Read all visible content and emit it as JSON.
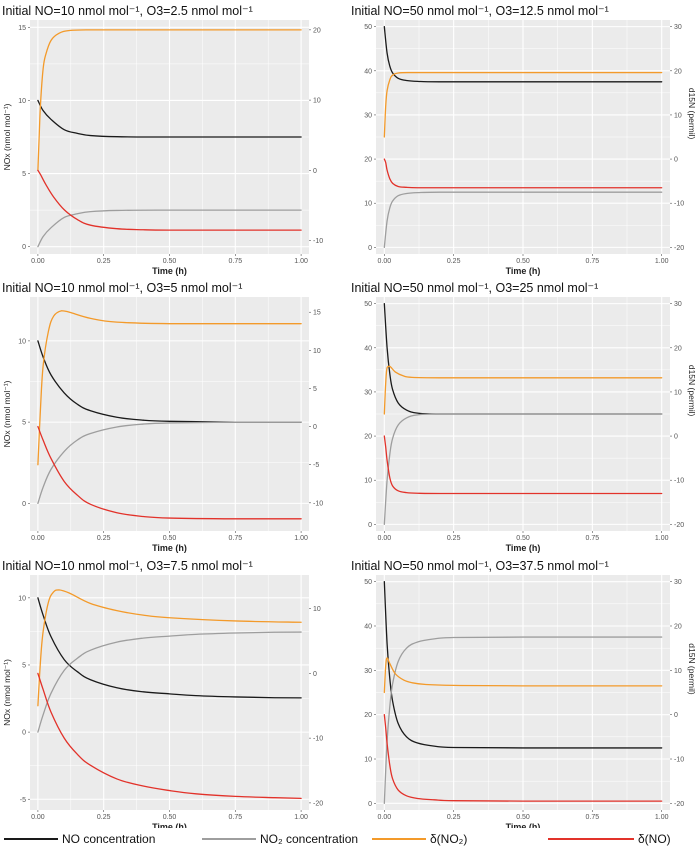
{
  "legend": {
    "no_conc": "NO concentration",
    "no2_conc": "NO₂ concentration",
    "d_no2": "δ(NO₂)",
    "d_no": "δ(NO)"
  },
  "colors": {
    "no_conc": "#1a1a1a",
    "no2_conc": "#9e9e9e",
    "d_no2": "#f39a2a",
    "d_no": "#e2322a",
    "panel_bg": "#ebebeb",
    "grid": "#ffffff"
  },
  "chart_data": [
    {
      "type": "line",
      "title": "Initial NO=10 nmol mol⁻¹, O3=2.5 nmol mol⁻¹",
      "xlabel": "Time (h)",
      "ylabel": "NOx (nmol mol⁻¹)",
      "y2label": "",
      "xlim": [
        -0.03,
        1.03
      ],
      "ylim": [
        -0.5,
        15.5
      ],
      "y2lim": [
        -11.9,
        21.4
      ],
      "xticks": [
        "0.00",
        "0.25",
        "0.50",
        "0.75",
        "1.00"
      ],
      "yticks": [
        "0",
        "5",
        "10",
        "15"
      ],
      "y2ticks": [
        "-10",
        "0",
        "10",
        "20"
      ],
      "series": [
        {
          "key": "no_conc",
          "axis": "left",
          "x": [
            0,
            0.02,
            0.05,
            0.1,
            0.15,
            0.2,
            0.3,
            0.5,
            0.75,
            1.0
          ],
          "y": [
            10,
            9.3,
            8.7,
            8.0,
            7.75,
            7.6,
            7.52,
            7.5,
            7.5,
            7.5
          ]
        },
        {
          "key": "no2_conc",
          "axis": "left",
          "x": [
            0,
            0.02,
            0.05,
            0.1,
            0.15,
            0.2,
            0.3,
            0.5,
            0.75,
            1.0
          ],
          "y": [
            0,
            0.7,
            1.3,
            2.0,
            2.25,
            2.4,
            2.48,
            2.5,
            2.5,
            2.5
          ]
        },
        {
          "key": "d_no2",
          "axis": "right",
          "x": [
            0,
            0.005,
            0.01,
            0.02,
            0.03,
            0.05,
            0.08,
            0.12,
            0.2,
            0.3,
            0.5,
            0.75,
            1.0
          ],
          "y": [
            0,
            5,
            9.5,
            14.5,
            16.5,
            18.5,
            19.5,
            19.9,
            20,
            20,
            20,
            20,
            20
          ]
        },
        {
          "key": "d_no",
          "axis": "right",
          "x": [
            0,
            0.01,
            0.03,
            0.06,
            0.1,
            0.15,
            0.2,
            0.3,
            0.4,
            0.5,
            0.75,
            1.0
          ],
          "y": [
            0,
            -0.6,
            -2.0,
            -3.8,
            -5.6,
            -7.0,
            -7.8,
            -8.3,
            -8.45,
            -8.5,
            -8.5,
            -8.5
          ]
        }
      ]
    },
    {
      "type": "line",
      "title": "Initial NO=50 nmol mol⁻¹, O3=12.5 nmol mol⁻¹",
      "xlabel": "Time (h)",
      "ylabel": "",
      "y2label": "d15N (permil)",
      "xlim": [
        -0.03,
        1.03
      ],
      "ylim": [
        -1.5,
        51.5
      ],
      "y2lim": [
        -21.5,
        31.5
      ],
      "xticks": [
        "0.00",
        "0.25",
        "0.50",
        "0.75",
        "1.00"
      ],
      "yticks": [
        "0",
        "10",
        "20",
        "30",
        "40",
        "50"
      ],
      "y2ticks": [
        "-20",
        "-10",
        "0",
        "10",
        "20",
        "30"
      ],
      "series": [
        {
          "key": "no_conc",
          "axis": "left",
          "x": [
            0,
            0.01,
            0.02,
            0.03,
            0.05,
            0.08,
            0.12,
            0.2,
            0.5,
            1.0
          ],
          "y": [
            50,
            44,
            41,
            39.5,
            38.3,
            37.8,
            37.6,
            37.5,
            37.5,
            37.5
          ]
        },
        {
          "key": "no2_conc",
          "axis": "left",
          "x": [
            0,
            0.01,
            0.02,
            0.03,
            0.05,
            0.08,
            0.12,
            0.2,
            0.5,
            1.0
          ],
          "y": [
            0,
            6,
            9,
            10.5,
            11.7,
            12.2,
            12.4,
            12.5,
            12.5,
            12.5
          ]
        },
        {
          "key": "d_no2",
          "axis": "right",
          "x": [
            0,
            0.005,
            0.01,
            0.02,
            0.03,
            0.05,
            0.1,
            0.2,
            0.5,
            1.0
          ],
          "y": [
            5,
            12,
            15.5,
            18,
            19,
            19.5,
            19.6,
            19.6,
            19.6,
            19.6
          ]
        },
        {
          "key": "d_no",
          "axis": "right",
          "x": [
            0,
            0.005,
            0.01,
            0.02,
            0.03,
            0.05,
            0.08,
            0.12,
            0.2,
            0.5,
            1.0
          ],
          "y": [
            0,
            -0.8,
            -2.5,
            -4.5,
            -5.5,
            -6.2,
            -6.4,
            -6.5,
            -6.5,
            -6.5,
            -6.5
          ]
        }
      ]
    },
    {
      "type": "line",
      "title": "Initial NO=10 nmol mol⁻¹, O3=5 nmol mol⁻¹",
      "xlabel": "Time (h)",
      "ylabel": "NOx (nmol mol⁻¹)",
      "y2label": "",
      "xlim": [
        -0.03,
        1.03
      ],
      "ylim": [
        -1.7,
        12.7
      ],
      "y2lim": [
        -13.7,
        17.0
      ],
      "xticks": [
        "0.00",
        "0.25",
        "0.50",
        "0.75",
        "1.00"
      ],
      "yticks": [
        "0",
        "5",
        "10"
      ],
      "y2ticks": [
        "-10",
        "-5",
        "0",
        "5",
        "10",
        "15"
      ],
      "series": [
        {
          "key": "no_conc",
          "axis": "left",
          "x": [
            0,
            0.02,
            0.05,
            0.1,
            0.15,
            0.2,
            0.3,
            0.4,
            0.5,
            0.75,
            1.0
          ],
          "y": [
            10,
            9.0,
            7.9,
            6.8,
            6.1,
            5.7,
            5.3,
            5.12,
            5.05,
            5.0,
            5.0
          ]
        },
        {
          "key": "no2_conc",
          "axis": "left",
          "x": [
            0,
            0.02,
            0.05,
            0.1,
            0.15,
            0.2,
            0.3,
            0.4,
            0.5,
            0.75,
            1.0
          ],
          "y": [
            0,
            1.0,
            2.1,
            3.2,
            3.9,
            4.3,
            4.7,
            4.88,
            4.95,
            5.0,
            5.0
          ]
        },
        {
          "key": "d_no2",
          "axis": "right",
          "x": [
            0,
            0.01,
            0.02,
            0.04,
            0.06,
            0.09,
            0.12,
            0.2,
            0.3,
            0.5,
            0.75,
            1.0
          ],
          "y": [
            -5,
            2.5,
            8,
            12.5,
            14.5,
            15.2,
            15.0,
            14.2,
            13.7,
            13.5,
            13.5,
            13.5
          ]
        },
        {
          "key": "d_no",
          "axis": "right",
          "x": [
            0,
            0.02,
            0.05,
            0.1,
            0.15,
            0.2,
            0.3,
            0.4,
            0.5,
            0.75,
            1.0
          ],
          "y": [
            0,
            -1.8,
            -4.2,
            -7.2,
            -9.0,
            -10.2,
            -11.3,
            -11.8,
            -12.0,
            -12.1,
            -12.1
          ]
        }
      ]
    },
    {
      "type": "line",
      "title": "Initial NO=50 nmol mol⁻¹, O3=25 nmol mol⁻¹",
      "xlabel": "Time (h)",
      "ylabel": "",
      "y2label": "d15N (permil)",
      "xlim": [
        -0.03,
        1.03
      ],
      "ylim": [
        -1.5,
        51.5
      ],
      "y2lim": [
        -21.5,
        31.5
      ],
      "xticks": [
        "0.00",
        "0.25",
        "0.50",
        "0.75",
        "1.00"
      ],
      "yticks": [
        "0",
        "10",
        "20",
        "30",
        "40",
        "50"
      ],
      "y2ticks": [
        "-20",
        "-10",
        "0",
        "10",
        "20",
        "30"
      ],
      "series": [
        {
          "key": "no_conc",
          "axis": "left",
          "x": [
            0,
            0.01,
            0.02,
            0.03,
            0.05,
            0.08,
            0.12,
            0.2,
            0.5,
            1.0
          ],
          "y": [
            50,
            40,
            34,
            30.5,
            27.5,
            25.9,
            25.2,
            25.0,
            25.0,
            25.0
          ]
        },
        {
          "key": "no2_conc",
          "axis": "left",
          "x": [
            0,
            0.01,
            0.02,
            0.03,
            0.05,
            0.08,
            0.12,
            0.2,
            0.5,
            1.0
          ],
          "y": [
            0,
            10,
            16,
            19.5,
            22.5,
            24.1,
            24.8,
            25.0,
            25.0,
            25.0
          ]
        },
        {
          "key": "d_no2",
          "axis": "right",
          "x": [
            0,
            0.005,
            0.01,
            0.02,
            0.04,
            0.07,
            0.1,
            0.2,
            0.5,
            1.0
          ],
          "y": [
            5,
            12,
            15.5,
            15.8,
            14.5,
            13.6,
            13.3,
            13.2,
            13.2,
            13.2
          ]
        },
        {
          "key": "d_no",
          "axis": "right",
          "x": [
            0,
            0.005,
            0.01,
            0.02,
            0.03,
            0.05,
            0.08,
            0.12,
            0.2,
            0.5,
            1.0
          ],
          "y": [
            0,
            -2.5,
            -5.5,
            -9.5,
            -11.3,
            -12.4,
            -12.8,
            -12.95,
            -13,
            -13,
            -13
          ]
        }
      ]
    },
    {
      "type": "line",
      "title": "Initial NO=10 nmol mol⁻¹, O3=7.5 nmol mol⁻¹",
      "xlabel": "Time (h)",
      "ylabel": "NOx (nmol mol⁻¹)",
      "y2label": "",
      "xlim": [
        -0.03,
        1.03
      ],
      "ylim": [
        -5.8,
        11.7
      ],
      "y2lim": [
        -21.1,
        15.2
      ],
      "xticks": [
        "0.00",
        "0.25",
        "0.50",
        "0.75",
        "1.00"
      ],
      "yticks": [
        "-5",
        "0",
        "5",
        "10"
      ],
      "y2ticks": [
        "-20",
        "-10",
        "0",
        "10"
      ],
      "series": [
        {
          "key": "no_conc",
          "axis": "left",
          "x": [
            0,
            0.02,
            0.05,
            0.1,
            0.15,
            0.2,
            0.3,
            0.4,
            0.5,
            0.6,
            0.75,
            0.9,
            1.0
          ],
          "y": [
            10,
            8.7,
            7.1,
            5.4,
            4.5,
            3.9,
            3.3,
            3.0,
            2.85,
            2.72,
            2.62,
            2.56,
            2.55
          ]
        },
        {
          "key": "no2_conc",
          "axis": "left",
          "x": [
            0,
            0.02,
            0.05,
            0.1,
            0.15,
            0.2,
            0.3,
            0.4,
            0.5,
            0.6,
            0.75,
            0.9,
            1.0
          ],
          "y": [
            0,
            1.3,
            2.9,
            4.6,
            5.5,
            6.1,
            6.7,
            7.0,
            7.15,
            7.28,
            7.38,
            7.44,
            7.45
          ]
        },
        {
          "key": "d_no2",
          "axis": "right",
          "x": [
            0,
            0.01,
            0.02,
            0.04,
            0.06,
            0.08,
            0.12,
            0.2,
            0.3,
            0.4,
            0.5,
            0.75,
            1.0
          ],
          "y": [
            -5,
            2,
            6.5,
            11,
            12.6,
            12.9,
            12.4,
            10.8,
            9.7,
            9.0,
            8.6,
            8.1,
            7.9
          ]
        },
        {
          "key": "d_no",
          "axis": "right",
          "x": [
            0,
            0.02,
            0.05,
            0.1,
            0.15,
            0.2,
            0.3,
            0.4,
            0.5,
            0.6,
            0.75,
            0.9,
            1.0
          ],
          "y": [
            0,
            -2.5,
            -6,
            -10,
            -12.5,
            -14.2,
            -16.3,
            -17.4,
            -18.1,
            -18.6,
            -19.0,
            -19.2,
            -19.3
          ]
        }
      ]
    },
    {
      "type": "line",
      "title": "Initial NO=50 nmol mol⁻¹, O3=37.5 nmol mol⁻¹",
      "xlabel": "Time (h)",
      "ylabel": "",
      "y2label": "d15N (permil)",
      "xlim": [
        -0.03,
        1.03
      ],
      "ylim": [
        -1.5,
        51.5
      ],
      "y2lim": [
        -21.5,
        31.5
      ],
      "xticks": [
        "0.00",
        "0.25",
        "0.50",
        "0.75",
        "1.00"
      ],
      "yticks": [
        "0",
        "10",
        "20",
        "30",
        "40",
        "50"
      ],
      "y2ticks": [
        "-20",
        "-10",
        "0",
        "10",
        "20",
        "30"
      ],
      "series": [
        {
          "key": "no_conc",
          "axis": "left",
          "x": [
            0,
            0.01,
            0.02,
            0.03,
            0.05,
            0.08,
            0.12,
            0.18,
            0.25,
            0.5,
            1.0
          ],
          "y": [
            50,
            36,
            28,
            23,
            18,
            15,
            13.6,
            12.9,
            12.6,
            12.5,
            12.5
          ]
        },
        {
          "key": "no2_conc",
          "axis": "left",
          "x": [
            0,
            0.01,
            0.02,
            0.03,
            0.05,
            0.08,
            0.12,
            0.18,
            0.25,
            0.5,
            1.0
          ],
          "y": [
            0,
            14,
            22,
            27,
            32,
            35,
            36.4,
            37.1,
            37.4,
            37.5,
            37.5
          ]
        },
        {
          "key": "d_no2",
          "axis": "right",
          "x": [
            0,
            0.005,
            0.01,
            0.02,
            0.04,
            0.07,
            0.1,
            0.15,
            0.25,
            0.5,
            1.0
          ],
          "y": [
            5,
            11,
            12.8,
            11.5,
            9.2,
            7.8,
            7.2,
            6.8,
            6.6,
            6.5,
            6.5
          ]
        },
        {
          "key": "d_no",
          "axis": "right",
          "x": [
            0,
            0.005,
            0.01,
            0.02,
            0.03,
            0.05,
            0.08,
            0.12,
            0.18,
            0.25,
            0.5,
            1.0
          ],
          "y": [
            0,
            -3,
            -6.5,
            -11.5,
            -14.5,
            -17,
            -18.3,
            -18.9,
            -19.2,
            -19.4,
            -19.5,
            -19.5
          ]
        }
      ]
    }
  ]
}
